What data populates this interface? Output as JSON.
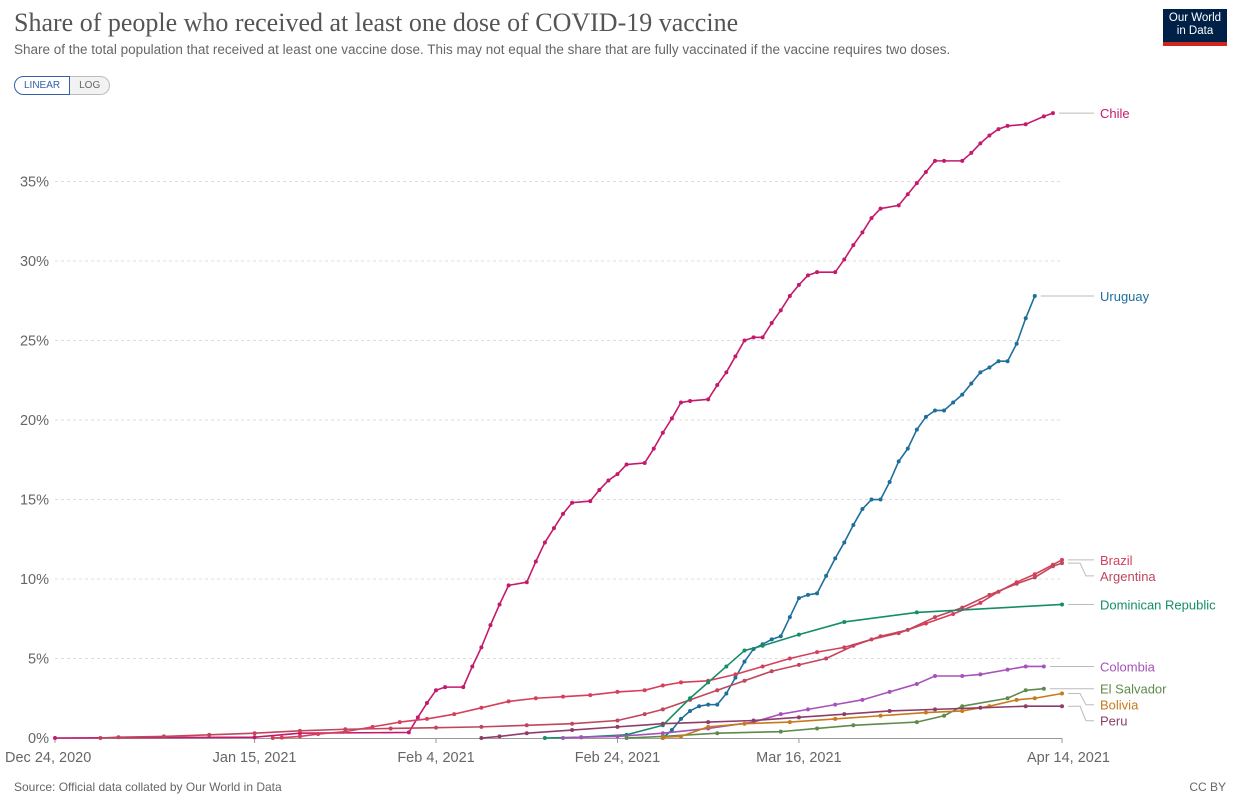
{
  "header": {
    "title": "Share of people who received at least one dose of COVID-19 vaccine",
    "subtitle": "Share of the total population that received at least one vaccine dose. This may not equal the share that are fully vaccinated if the vaccine requires two doses.",
    "logo_line1": "Our World",
    "logo_line2": "in Data"
  },
  "controls": {
    "linear_label": "LINEAR",
    "log_label": "LOG",
    "selected": "linear"
  },
  "footer": {
    "source": "Source: Official data collated by Our World in Data",
    "license": "CC BY"
  },
  "chart_data": {
    "type": "line",
    "x_axis": {
      "start": "2020-12-24",
      "end": "2021-04-14",
      "tick_labels": [
        "Dec 24, 2020",
        "Jan 15, 2021",
        "Feb 4, 2021",
        "Feb 24, 2021",
        "Mar 16, 2021",
        "Apr 14, 2021"
      ],
      "tick_dates": [
        "2020-12-24",
        "2021-01-15",
        "2021-02-04",
        "2021-02-24",
        "2021-03-16",
        "2021-04-14"
      ]
    },
    "y_axis": {
      "ylim": [
        0,
        39.5
      ],
      "ticks": [
        0,
        5,
        10,
        15,
        20,
        25,
        30,
        35
      ],
      "tick_labels": [
        "0%",
        "5%",
        "10%",
        "15%",
        "20%",
        "25%",
        "30%",
        "35%"
      ],
      "grid": true
    },
    "series": [
      {
        "name": "Chile",
        "color": "#c41a6d",
        "points": [
          [
            "2020-12-24",
            0
          ],
          [
            "2021-01-15",
            0.05
          ],
          [
            "2021-01-20",
            0.3
          ],
          [
            "2021-02-01",
            0.35
          ],
          [
            "2021-02-02",
            1.3
          ],
          [
            "2021-02-03",
            2.2
          ],
          [
            "2021-02-04",
            3.0
          ],
          [
            "2021-02-05",
            3.2
          ],
          [
            "2021-02-07",
            3.2
          ],
          [
            "2021-02-08",
            4.5
          ],
          [
            "2021-02-09",
            5.7
          ],
          [
            "2021-02-10",
            7.1
          ],
          [
            "2021-02-11",
            8.4
          ],
          [
            "2021-02-12",
            9.6
          ],
          [
            "2021-02-14",
            9.8
          ],
          [
            "2021-02-15",
            11.1
          ],
          [
            "2021-02-16",
            12.3
          ],
          [
            "2021-02-17",
            13.2
          ],
          [
            "2021-02-18",
            14.1
          ],
          [
            "2021-02-19",
            14.8
          ],
          [
            "2021-02-21",
            14.9
          ],
          [
            "2021-02-22",
            15.6
          ],
          [
            "2021-02-23",
            16.2
          ],
          [
            "2021-02-24",
            16.6
          ],
          [
            "2021-02-25",
            17.2
          ],
          [
            "2021-02-27",
            17.3
          ],
          [
            "2021-02-28",
            18.2
          ],
          [
            "2021-03-01",
            19.2
          ],
          [
            "2021-03-02",
            20.1
          ],
          [
            "2021-03-03",
            21.1
          ],
          [
            "2021-03-04",
            21.2
          ],
          [
            "2021-03-06",
            21.3
          ],
          [
            "2021-03-07",
            22.2
          ],
          [
            "2021-03-08",
            23.0
          ],
          [
            "2021-03-09",
            24.0
          ],
          [
            "2021-03-10",
            25.0
          ],
          [
            "2021-03-11",
            25.2
          ],
          [
            "2021-03-12",
            25.2
          ],
          [
            "2021-03-13",
            26.1
          ],
          [
            "2021-03-14",
            26.9
          ],
          [
            "2021-03-15",
            27.8
          ],
          [
            "2021-03-16",
            28.5
          ],
          [
            "2021-03-17",
            29.1
          ],
          [
            "2021-03-18",
            29.3
          ],
          [
            "2021-03-20",
            29.3
          ],
          [
            "2021-03-21",
            30.1
          ],
          [
            "2021-03-22",
            31.0
          ],
          [
            "2021-03-23",
            31.8
          ],
          [
            "2021-03-24",
            32.7
          ],
          [
            "2021-03-25",
            33.3
          ],
          [
            "2021-03-27",
            33.5
          ],
          [
            "2021-03-28",
            34.2
          ],
          [
            "2021-03-29",
            34.9
          ],
          [
            "2021-03-30",
            35.6
          ],
          [
            "2021-03-31",
            36.3
          ],
          [
            "2021-04-01",
            36.3
          ],
          [
            "2021-04-03",
            36.3
          ],
          [
            "2021-04-04",
            36.8
          ],
          [
            "2021-04-05",
            37.4
          ],
          [
            "2021-04-06",
            37.9
          ],
          [
            "2021-04-07",
            38.3
          ],
          [
            "2021-04-08",
            38.5
          ],
          [
            "2021-04-10",
            38.6
          ],
          [
            "2021-04-12",
            39.1
          ],
          [
            "2021-04-13",
            39.3
          ]
        ]
      },
      {
        "name": "Uruguay",
        "color": "#1f6f9b",
        "points": [
          [
            "2021-03-01",
            0
          ],
          [
            "2021-03-02",
            0.5
          ],
          [
            "2021-03-03",
            1.2
          ],
          [
            "2021-03-04",
            1.7
          ],
          [
            "2021-03-05",
            2.0
          ],
          [
            "2021-03-06",
            2.1
          ],
          [
            "2021-03-07",
            2.1
          ],
          [
            "2021-03-08",
            2.8
          ],
          [
            "2021-03-09",
            3.8
          ],
          [
            "2021-03-10",
            4.8
          ],
          [
            "2021-03-11",
            5.6
          ],
          [
            "2021-03-12",
            5.9
          ],
          [
            "2021-03-13",
            6.2
          ],
          [
            "2021-03-14",
            6.4
          ],
          [
            "2021-03-15",
            7.6
          ],
          [
            "2021-03-16",
            8.8
          ],
          [
            "2021-03-17",
            9.0
          ],
          [
            "2021-03-18",
            9.1
          ],
          [
            "2021-03-19",
            10.2
          ],
          [
            "2021-03-20",
            11.3
          ],
          [
            "2021-03-21",
            12.3
          ],
          [
            "2021-03-22",
            13.4
          ],
          [
            "2021-03-23",
            14.4
          ],
          [
            "2021-03-24",
            15.0
          ],
          [
            "2021-03-25",
            15.0
          ],
          [
            "2021-03-26",
            16.1
          ],
          [
            "2021-03-27",
            17.4
          ],
          [
            "2021-03-28",
            18.2
          ],
          [
            "2021-03-29",
            19.4
          ],
          [
            "2021-03-30",
            20.2
          ],
          [
            "2021-03-31",
            20.6
          ],
          [
            "2021-04-01",
            20.6
          ],
          [
            "2021-04-02",
            21.1
          ],
          [
            "2021-04-03",
            21.6
          ],
          [
            "2021-04-04",
            22.3
          ],
          [
            "2021-04-05",
            23.0
          ],
          [
            "2021-04-06",
            23.3
          ],
          [
            "2021-04-07",
            23.7
          ],
          [
            "2021-04-08",
            23.7
          ],
          [
            "2021-04-09",
            24.8
          ],
          [
            "2021-04-10",
            26.4
          ],
          [
            "2021-04-11",
            27.8
          ]
        ]
      },
      {
        "name": "Brazil",
        "color": "#d63f5b",
        "points": [
          [
            "2021-01-17",
            0.0
          ],
          [
            "2021-01-18",
            0.02
          ],
          [
            "2021-01-20",
            0.1
          ],
          [
            "2021-01-22",
            0.25
          ],
          [
            "2021-01-25",
            0.4
          ],
          [
            "2021-01-28",
            0.7
          ],
          [
            "2021-01-31",
            1.0
          ],
          [
            "2021-02-03",
            1.2
          ],
          [
            "2021-02-06",
            1.5
          ],
          [
            "2021-02-09",
            1.9
          ],
          [
            "2021-02-12",
            2.3
          ],
          [
            "2021-02-15",
            2.5
          ],
          [
            "2021-02-18",
            2.6
          ],
          [
            "2021-02-21",
            2.7
          ],
          [
            "2021-02-24",
            2.9
          ],
          [
            "2021-02-27",
            3.0
          ],
          [
            "2021-03-01",
            3.3
          ],
          [
            "2021-03-03",
            3.5
          ],
          [
            "2021-03-06",
            3.6
          ],
          [
            "2021-03-09",
            4.0
          ],
          [
            "2021-03-12",
            4.5
          ],
          [
            "2021-03-15",
            5.0
          ],
          [
            "2021-03-18",
            5.4
          ],
          [
            "2021-03-21",
            5.7
          ],
          [
            "2021-03-24",
            6.2
          ],
          [
            "2021-03-27",
            6.6
          ],
          [
            "2021-03-30",
            7.2
          ],
          [
            "2021-04-02",
            7.8
          ],
          [
            "2021-04-05",
            8.5
          ],
          [
            "2021-04-07",
            9.2
          ],
          [
            "2021-04-09",
            9.8
          ],
          [
            "2021-04-11",
            10.3
          ],
          [
            "2021-04-13",
            10.9
          ],
          [
            "2021-04-14",
            11.2
          ]
        ]
      },
      {
        "name": "Argentina",
        "color": "#c0475b",
        "points": [
          [
            "2020-12-29",
            0.0
          ],
          [
            "2020-12-31",
            0.05
          ],
          [
            "2021-01-05",
            0.1
          ],
          [
            "2021-01-10",
            0.2
          ],
          [
            "2021-01-15",
            0.3
          ],
          [
            "2021-01-20",
            0.45
          ],
          [
            "2021-01-25",
            0.55
          ],
          [
            "2021-01-30",
            0.6
          ],
          [
            "2021-02-04",
            0.65
          ],
          [
            "2021-02-09",
            0.7
          ],
          [
            "2021-02-14",
            0.8
          ],
          [
            "2021-02-19",
            0.9
          ],
          [
            "2021-02-24",
            1.1
          ],
          [
            "2021-02-27",
            1.5
          ],
          [
            "2021-03-01",
            1.8
          ],
          [
            "2021-03-04",
            2.4
          ],
          [
            "2021-03-07",
            3.0
          ],
          [
            "2021-03-10",
            3.6
          ],
          [
            "2021-03-13",
            4.2
          ],
          [
            "2021-03-16",
            4.6
          ],
          [
            "2021-03-19",
            5.0
          ],
          [
            "2021-03-22",
            5.8
          ],
          [
            "2021-03-25",
            6.4
          ],
          [
            "2021-03-28",
            6.8
          ],
          [
            "2021-03-31",
            7.6
          ],
          [
            "2021-04-03",
            8.2
          ],
          [
            "2021-04-06",
            9.0
          ],
          [
            "2021-04-09",
            9.7
          ],
          [
            "2021-04-11",
            10.1
          ],
          [
            "2021-04-13",
            10.8
          ],
          [
            "2021-04-14",
            11.0
          ]
        ]
      },
      {
        "name": "Dominican Republic",
        "color": "#138e67",
        "points": [
          [
            "2021-02-16",
            0
          ],
          [
            "2021-02-20",
            0.05
          ],
          [
            "2021-02-25",
            0.2
          ],
          [
            "2021-03-01",
            0.8
          ],
          [
            "2021-03-04",
            2.5
          ],
          [
            "2021-03-06",
            3.5
          ],
          [
            "2021-03-08",
            4.5
          ],
          [
            "2021-03-10",
            5.5
          ],
          [
            "2021-03-12",
            5.8
          ],
          [
            "2021-03-16",
            6.5
          ],
          [
            "2021-03-21",
            7.3
          ],
          [
            "2021-03-29",
            7.9
          ],
          [
            "2021-04-14",
            8.4
          ]
        ]
      },
      {
        "name": "Colombia",
        "color": "#a652ba",
        "points": [
          [
            "2021-02-18",
            0.0
          ],
          [
            "2021-02-20",
            0.05
          ],
          [
            "2021-02-24",
            0.1
          ],
          [
            "2021-03-01",
            0.3
          ],
          [
            "2021-03-06",
            0.6
          ],
          [
            "2021-03-11",
            1.0
          ],
          [
            "2021-03-14",
            1.5
          ],
          [
            "2021-03-17",
            1.8
          ],
          [
            "2021-03-20",
            2.1
          ],
          [
            "2021-03-23",
            2.4
          ],
          [
            "2021-03-26",
            2.9
          ],
          [
            "2021-03-29",
            3.4
          ],
          [
            "2021-03-31",
            3.9
          ],
          [
            "2021-04-03",
            3.9
          ],
          [
            "2021-04-05",
            4.0
          ],
          [
            "2021-04-08",
            4.3
          ],
          [
            "2021-04-10",
            4.5
          ],
          [
            "2021-04-12",
            4.5
          ]
        ]
      },
      {
        "name": "El Salvador",
        "color": "#5f8a4b",
        "points": [
          [
            "2021-02-25",
            0
          ],
          [
            "2021-03-01",
            0.1
          ],
          [
            "2021-03-07",
            0.3
          ],
          [
            "2021-03-14",
            0.4
          ],
          [
            "2021-03-18",
            0.6
          ],
          [
            "2021-03-22",
            0.8
          ],
          [
            "2021-03-29",
            1.0
          ],
          [
            "2021-04-01",
            1.4
          ],
          [
            "2021-04-03",
            2.0
          ],
          [
            "2021-04-08",
            2.5
          ],
          [
            "2021-04-10",
            3.0
          ],
          [
            "2021-04-12",
            3.1
          ]
        ]
      },
      {
        "name": "Bolivia",
        "color": "#c77a1b",
        "points": [
          [
            "2021-02-29",
            0
          ],
          [
            "2021-03-01",
            0.05
          ],
          [
            "2021-03-03",
            0.1
          ],
          [
            "2021-03-06",
            0.7
          ],
          [
            "2021-03-10",
            0.9
          ],
          [
            "2021-03-15",
            1.0
          ],
          [
            "2021-03-20",
            1.2
          ],
          [
            "2021-03-25",
            1.4
          ],
          [
            "2021-03-30",
            1.6
          ],
          [
            "2021-04-03",
            1.7
          ],
          [
            "2021-04-06",
            2.0
          ],
          [
            "2021-04-09",
            2.4
          ],
          [
            "2021-04-11",
            2.5
          ],
          [
            "2021-04-14",
            2.8
          ]
        ]
      },
      {
        "name": "Peru",
        "color": "#8d3d69",
        "points": [
          [
            "2021-02-09",
            0
          ],
          [
            "2021-02-11",
            0.1
          ],
          [
            "2021-02-14",
            0.3
          ],
          [
            "2021-02-19",
            0.5
          ],
          [
            "2021-02-24",
            0.7
          ],
          [
            "2021-03-01",
            0.9
          ],
          [
            "2021-03-06",
            1.0
          ],
          [
            "2021-03-11",
            1.1
          ],
          [
            "2021-03-16",
            1.3
          ],
          [
            "2021-03-21",
            1.5
          ],
          [
            "2021-03-26",
            1.7
          ],
          [
            "2021-03-31",
            1.8
          ],
          [
            "2021-04-05",
            1.9
          ],
          [
            "2021-04-10",
            2.0
          ],
          [
            "2021-04-14",
            2.0
          ]
        ]
      }
    ]
  }
}
